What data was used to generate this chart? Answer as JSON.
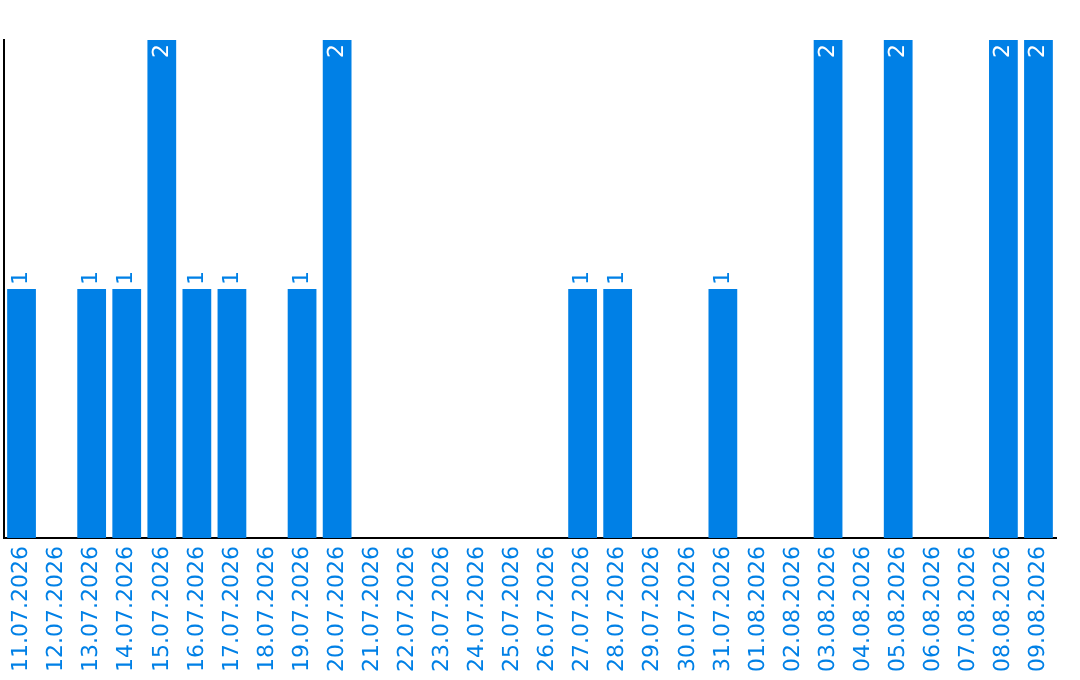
{
  "chart_data": {
    "type": "bar",
    "categories": [
      "11.07.2026",
      "12.07.2026",
      "13.07.2026",
      "14.07.2026",
      "15.07.2026",
      "16.07.2026",
      "17.07.2026",
      "18.07.2026",
      "19.07.2026",
      "20.07.2026",
      "21.07.2026",
      "22.07.2026",
      "23.07.2026",
      "24.07.2026",
      "25.07.2026",
      "26.07.2026",
      "27.07.2026",
      "28.07.2026",
      "29.07.2026",
      "30.07.2026",
      "31.07.2026",
      "01.08.2026",
      "02.08.2026",
      "03.08.2026",
      "04.08.2026",
      "05.08.2026",
      "06.08.2026",
      "07.08.2026",
      "08.08.2026",
      "09.08.2026"
    ],
    "values": [
      1,
      0,
      1,
      1,
      2,
      1,
      1,
      0,
      1,
      2,
      0,
      0,
      0,
      0,
      0,
      0,
      1,
      1,
      0,
      0,
      1,
      0,
      0,
      2,
      0,
      2,
      0,
      0,
      2,
      2
    ],
    "value_labels": [
      "1",
      null,
      "1",
      "1",
      "2",
      "1",
      "1",
      null,
      "1",
      "2",
      null,
      null,
      null,
      null,
      null,
      null,
      "1",
      "1",
      null,
      null,
      "1",
      null,
      null,
      "2",
      null,
      "2",
      null,
      null,
      "2",
      "2"
    ],
    "color": "#0080e6",
    "ylim": [
      0,
      2
    ],
    "tick_labels": "x",
    "grid": false,
    "legend": false
  }
}
